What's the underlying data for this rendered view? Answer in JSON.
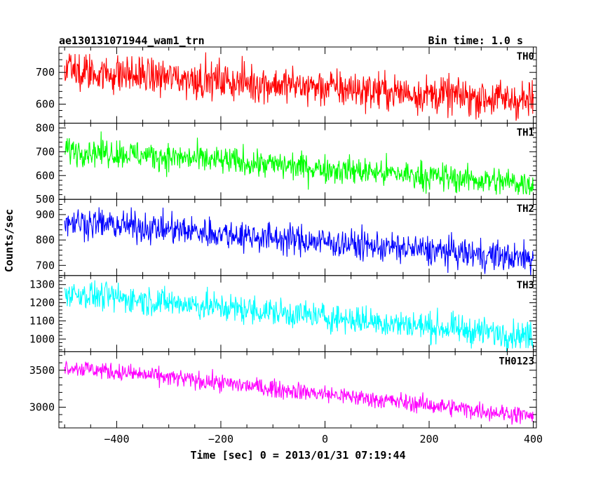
{
  "header": {
    "title": "ae130131071944_wam1_trn",
    "bin_time": "Bin time: 1.0 s"
  },
  "chart_data": {
    "type": "line",
    "xlabel": "Time [sec] 0 = 2013/01/31 07:19:44",
    "ylabel": "Counts/sec",
    "xlim": [
      -511,
      406
    ],
    "xticks": [
      -400,
      -200,
      0,
      200,
      400
    ],
    "x_tick_labels": [
      "−400",
      "−200",
      "0",
      "200",
      "400"
    ],
    "x_step": 1,
    "panels": [
      {
        "name": "TH0",
        "color": "#ff0000",
        "ylim": [
          540,
          780
        ],
        "yticks": [
          600,
          700
        ],
        "y_tick_labels": [
          "600",
          "700"
        ],
        "start_value": 705,
        "end_value": 610,
        "noise_amplitude": 30,
        "x_range": [
          -500,
          400
        ]
      },
      {
        "name": "TH1",
        "color": "#00ff00",
        "ylim": [
          500,
          820
        ],
        "yticks": [
          500,
          600,
          700,
          800
        ],
        "y_tick_labels": [
          "500",
          "600",
          "700",
          "800"
        ],
        "start_value": 710,
        "end_value": 565,
        "noise_amplitude": 30,
        "x_range": [
          -500,
          400
        ]
      },
      {
        "name": "TH2",
        "color": "#0000ff",
        "ylim": [
          660,
          960
        ],
        "yticks": [
          700,
          800,
          900
        ],
        "y_tick_labels": [
          "700",
          "800",
          "900"
        ],
        "start_value": 875,
        "end_value": 725,
        "noise_amplitude": 30,
        "x_range": [
          -500,
          400
        ]
      },
      {
        "name": "TH3",
        "color": "#00ffff",
        "ylim": [
          930,
          1350
        ],
        "yticks": [
          1000,
          1100,
          1200,
          1300
        ],
        "y_tick_labels": [
          "1000",
          "1100",
          "1200",
          "1300"
        ],
        "start_value": 1255,
        "end_value": 1015,
        "noise_amplitude": 40,
        "x_range": [
          -500,
          400
        ]
      },
      {
        "name": "TH0123",
        "color": "#ff00ff",
        "ylim": [
          2720,
          3750
        ],
        "yticks": [
          3000,
          3500
        ],
        "y_tick_labels": [
          "3000",
          "3500"
        ],
        "start_value": 3550,
        "end_value": 2880,
        "noise_amplitude": 60,
        "x_range": [
          -500,
          400
        ]
      }
    ]
  }
}
